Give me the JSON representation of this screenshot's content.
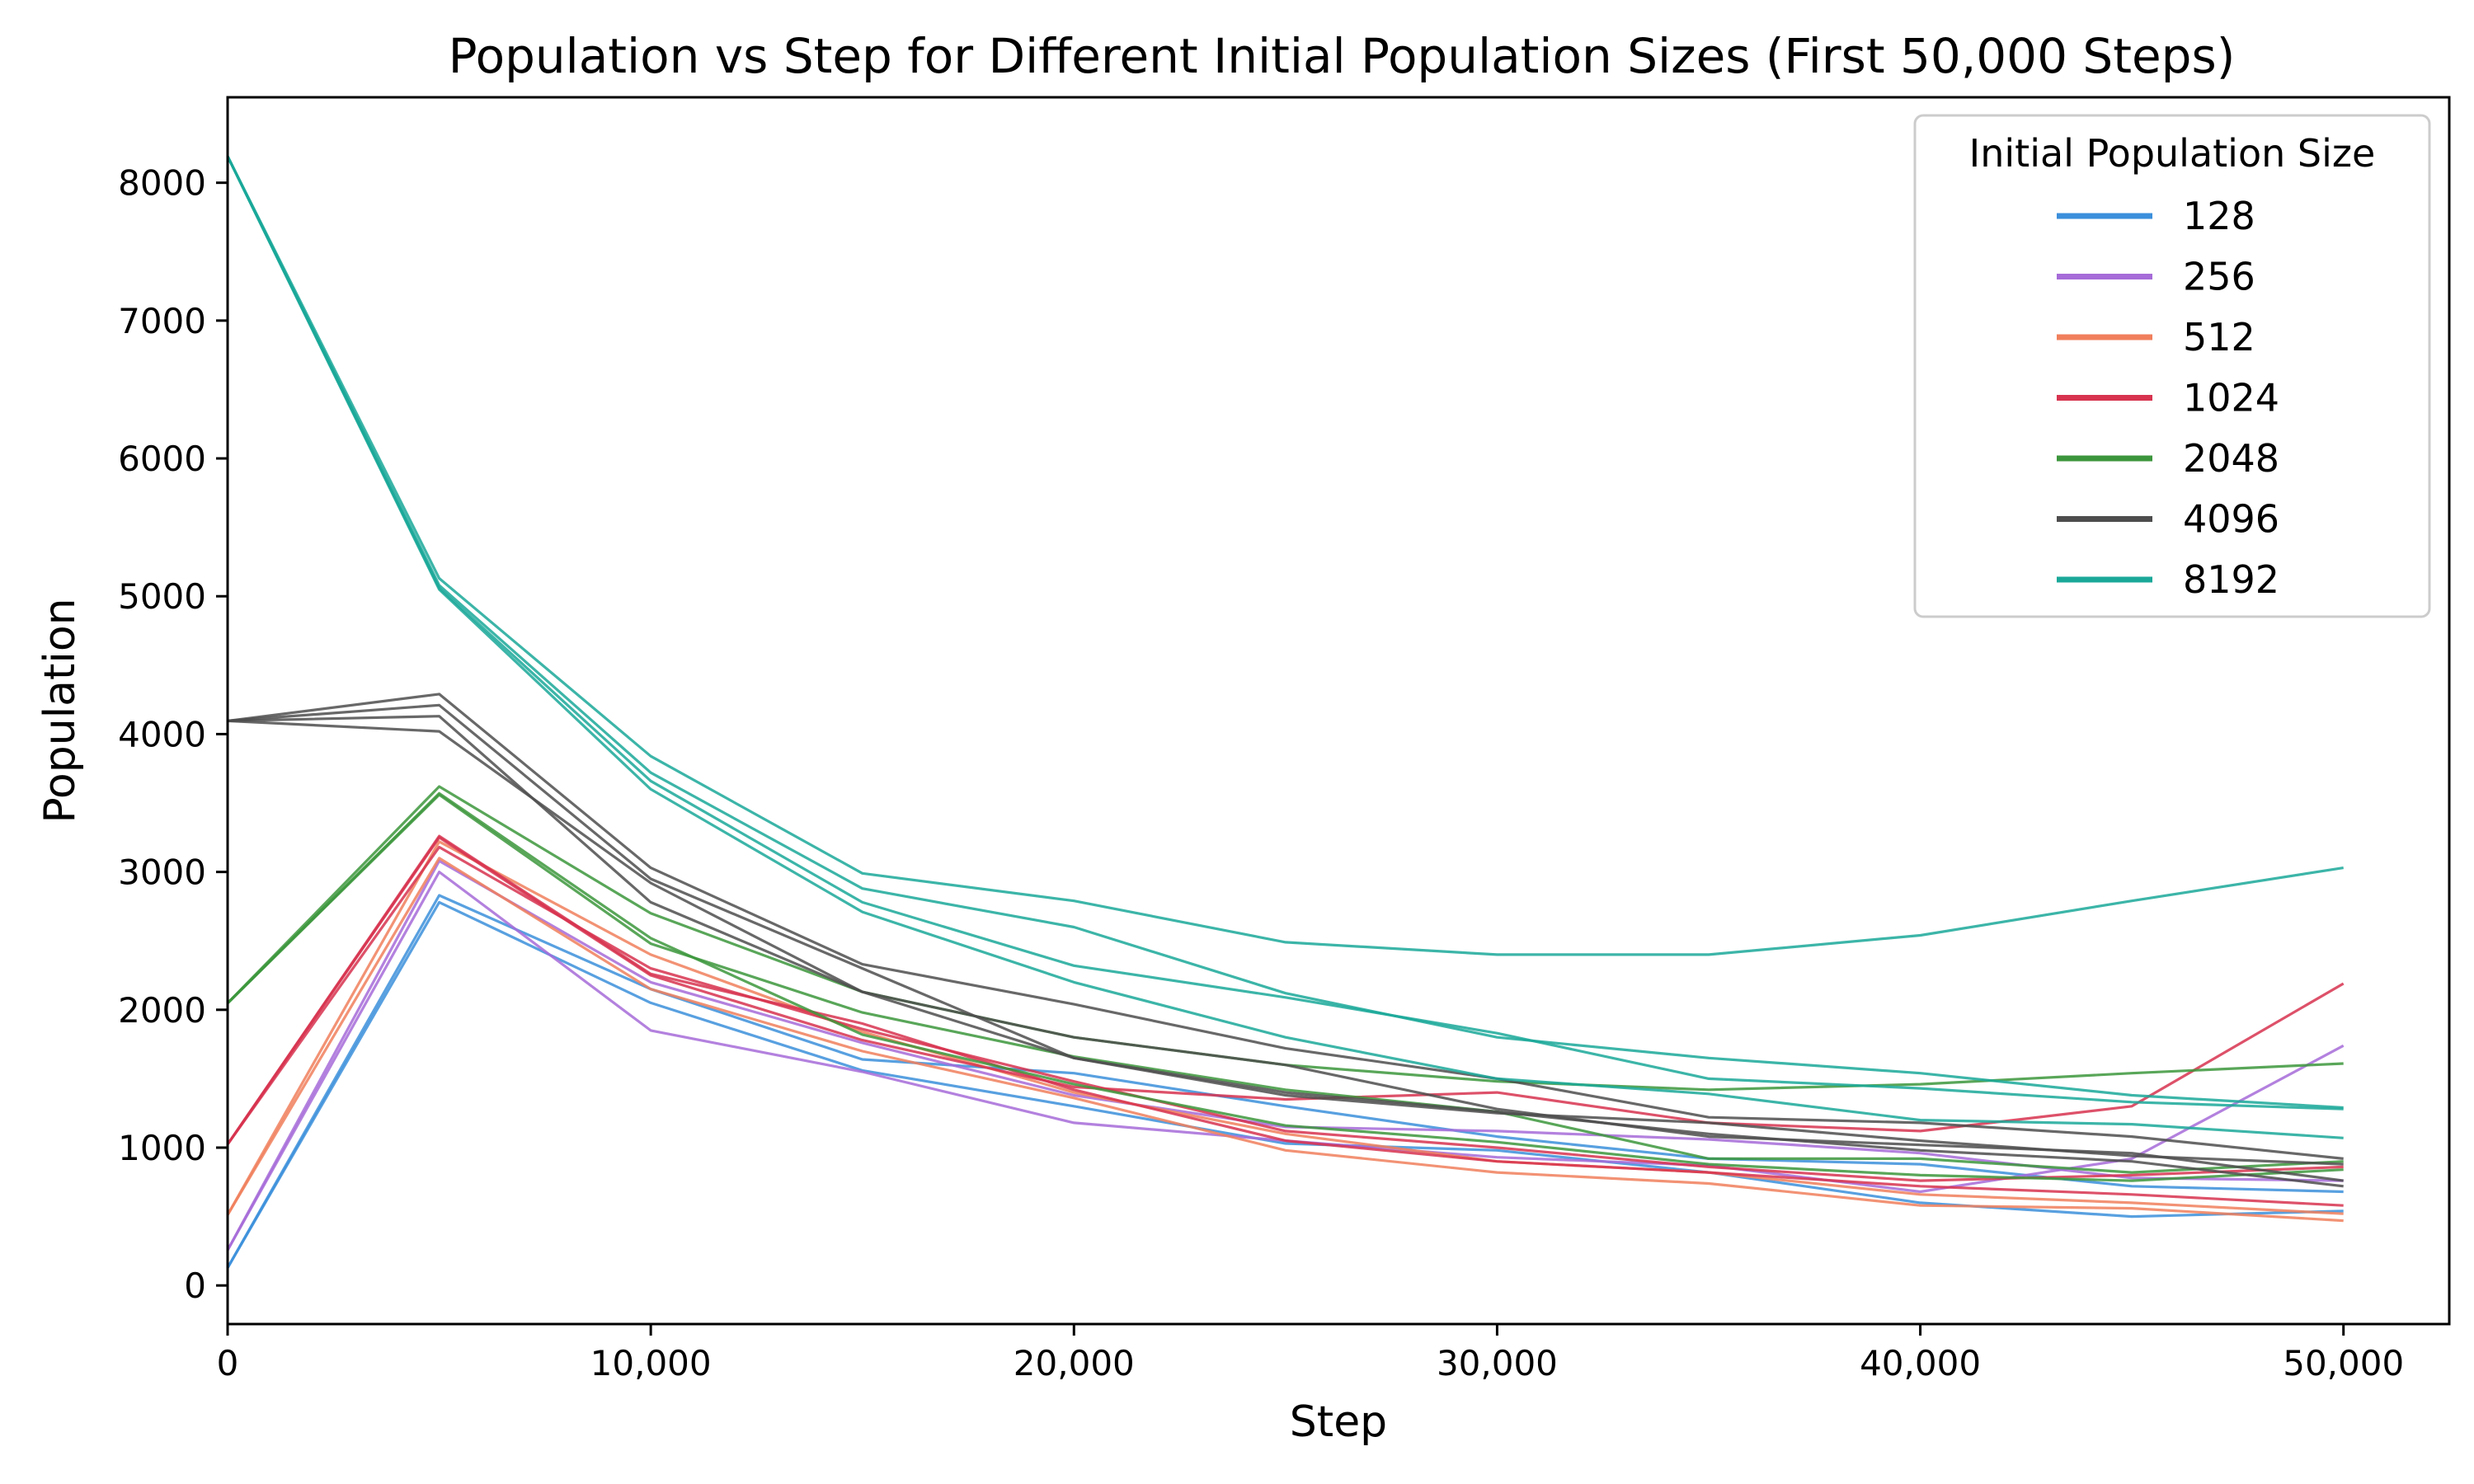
{
  "chart_data": {
    "type": "line",
    "title": "Population vs Step for Different Initial Population Sizes (First 50,000 Steps)",
    "xlabel": "Step",
    "ylabel": "Population",
    "xlim": [
      0,
      52500
    ],
    "ylim": [
      -280,
      8620
    ],
    "xticks": [
      0,
      10000,
      20000,
      30000,
      40000,
      50000
    ],
    "xtick_labels": [
      "0",
      "10,000",
      "20,000",
      "30,000",
      "40,000",
      "50,000"
    ],
    "yticks": [
      0,
      1000,
      2000,
      3000,
      4000,
      5000,
      6000,
      7000,
      8000
    ],
    "ytick_labels": [
      "0",
      "1000",
      "2000",
      "3000",
      "4000",
      "5000",
      "6000",
      "7000",
      "8000"
    ],
    "x": [
      0,
      5000,
      10000,
      15000,
      20000,
      25000,
      30000,
      35000,
      40000,
      45000,
      50000
    ],
    "legend": {
      "title": "Initial Population Size",
      "position": "top-right"
    },
    "groups": [
      {
        "name": "128",
        "color": "#3b8fdb",
        "runs": [
          [
            128,
            2780,
            2050,
            1560,
            1300,
            1030,
            980,
            820,
            600,
            500,
            540
          ],
          [
            128,
            2830,
            2150,
            1640,
            1540,
            1300,
            1080,
            920,
            880,
            720,
            680
          ]
        ]
      },
      {
        "name": "256",
        "color": "#a66bd8",
        "runs": [
          [
            256,
            3000,
            1850,
            1550,
            1180,
            1050,
            930,
            870,
            680,
            920,
            1740
          ],
          [
            256,
            3080,
            2200,
            1760,
            1380,
            1150,
            1120,
            1060,
            960,
            780,
            760
          ]
        ]
      },
      {
        "name": "512",
        "color": "#f07f5c",
        "runs": [
          [
            512,
            3100,
            2150,
            1700,
            1360,
            980,
            820,
            740,
            580,
            560,
            470
          ],
          [
            512,
            3220,
            2400,
            1840,
            1400,
            1100,
            900,
            820,
            660,
            600,
            520
          ]
        ]
      },
      {
        "name": "1024",
        "color": "#d7334f",
        "runs": [
          [
            1024,
            3250,
            2250,
            1780,
            1440,
            1350,
            1400,
            1180,
            1120,
            1300,
            2190
          ],
          [
            1024,
            3180,
            2300,
            1860,
            1480,
            1120,
            1000,
            860,
            760,
            800,
            860
          ],
          [
            1024,
            3260,
            2260,
            1900,
            1420,
            1050,
            900,
            820,
            720,
            660,
            580
          ]
        ]
      },
      {
        "name": "2048",
        "color": "#3c963c",
        "runs": [
          [
            2048,
            3620,
            2700,
            2130,
            1800,
            1600,
            1480,
            1420,
            1460,
            1540,
            1610
          ],
          [
            2048,
            3560,
            2480,
            1980,
            1660,
            1420,
            1260,
            920,
            920,
            820,
            900
          ],
          [
            2048,
            3570,
            2520,
            1820,
            1460,
            1160,
            1040,
            880,
            800,
            760,
            840
          ]
        ]
      },
      {
        "name": "4096",
        "color": "#4d4d4d",
        "runs": [
          [
            4096,
            4290,
            3030,
            2330,
            2040,
            1720,
            1500,
            1220,
            1180,
            1080,
            920
          ],
          [
            4096,
            4210,
            2950,
            2300,
            1650,
            1380,
            1250,
            1180,
            1050,
            940,
            880
          ],
          [
            4096,
            4130,
            2780,
            2130,
            1800,
            1600,
            1280,
            1080,
            1020,
            960,
            760
          ],
          [
            4096,
            4020,
            2920,
            2130,
            1650,
            1400,
            1260,
            1100,
            980,
            900,
            720
          ]
        ]
      },
      {
        "name": "8192",
        "color": "#1aa899",
        "runs": [
          [
            8192,
            5130,
            3840,
            2990,
            2790,
            2490,
            2400,
            2400,
            2540,
            2790,
            3030
          ],
          [
            8192,
            5080,
            3720,
            2880,
            2600,
            2120,
            1800,
            1650,
            1540,
            1380,
            1290
          ],
          [
            8192,
            5060,
            3660,
            2780,
            2320,
            2090,
            1830,
            1500,
            1430,
            1330,
            1280
          ],
          [
            8192,
            5050,
            3600,
            2710,
            2200,
            1800,
            1500,
            1390,
            1200,
            1170,
            1070
          ]
        ]
      }
    ]
  }
}
